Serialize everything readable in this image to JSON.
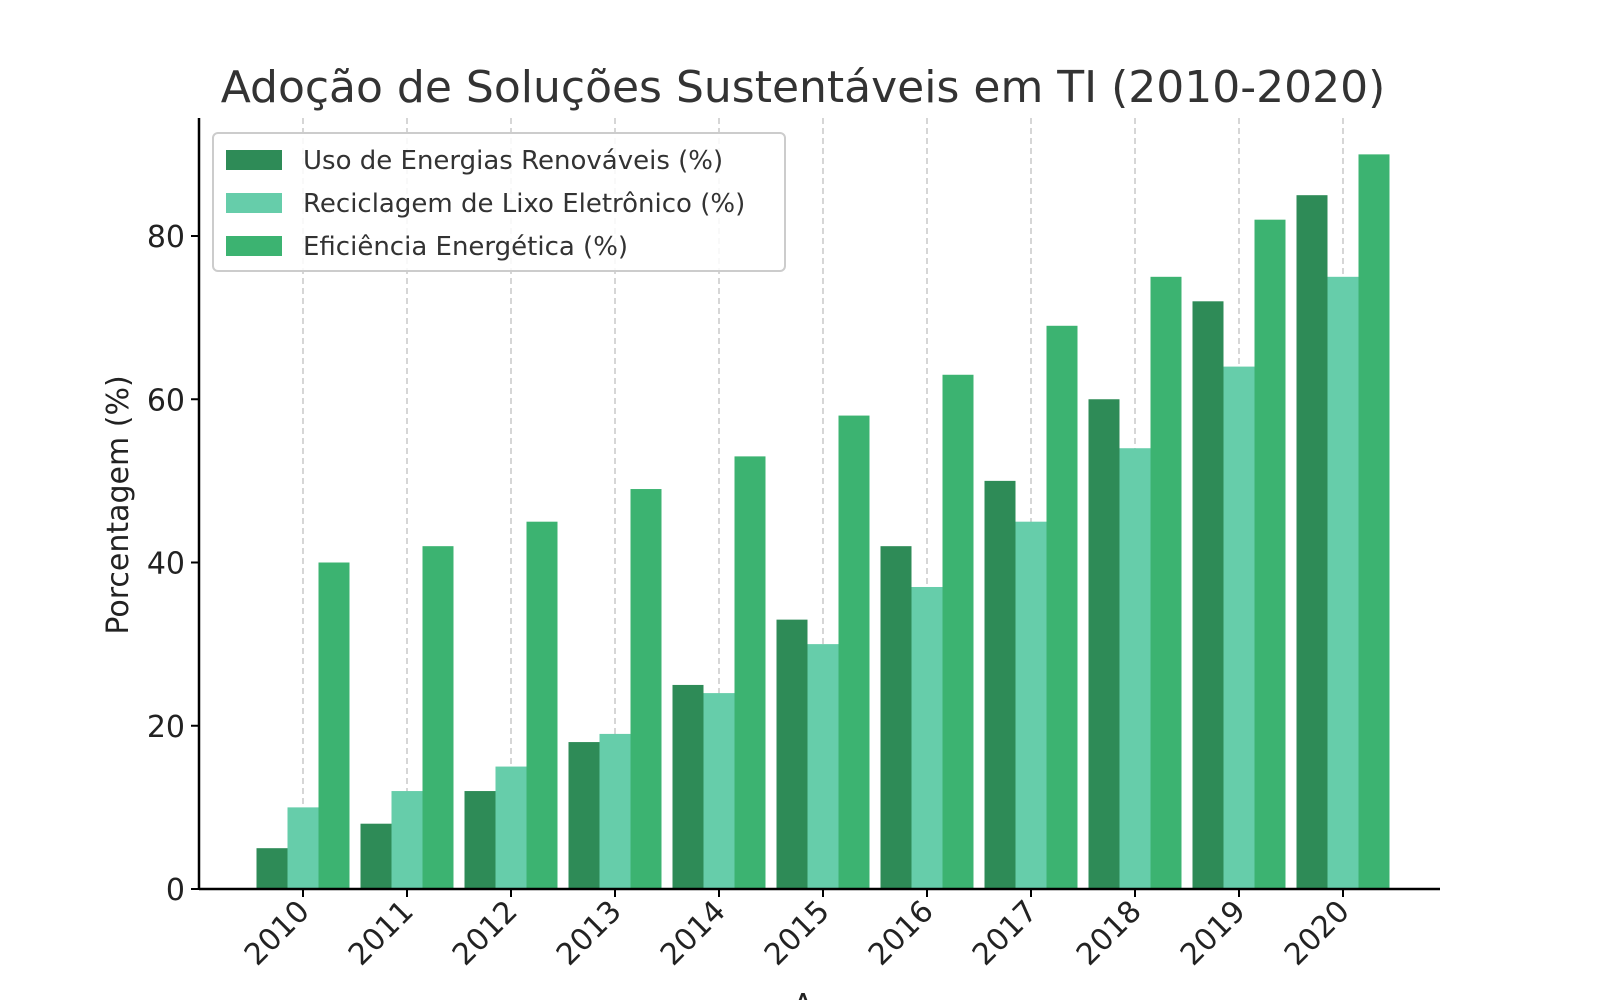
{
  "chart_data": {
    "type": "bar",
    "title": "Adoção de Soluções Sustentáveis em TI (2010-2020)",
    "xlabel": "A",
    "ylabel": "Porcentagem (%)",
    "categories": [
      "2010",
      "2011",
      "2012",
      "2013",
      "2014",
      "2015",
      "2016",
      "2017",
      "2018",
      "2019",
      "2020"
    ],
    "series": [
      {
        "name": "Uso de Energias Renováveis (%)",
        "color": "#2e8b57",
        "values": [
          5,
          8,
          12,
          18,
          25,
          33,
          42,
          50,
          60,
          72,
          85
        ]
      },
      {
        "name": "Reciclagem de Lixo Eletrônico (%)",
        "color": "#66cdaa",
        "values": [
          10,
          12,
          15,
          19,
          24,
          30,
          37,
          45,
          54,
          64,
          75
        ]
      },
      {
        "name": "Eficiência Energética (%)",
        "color": "#3cb371",
        "values": [
          40,
          42,
          45,
          49,
          53,
          58,
          63,
          69,
          75,
          82,
          90
        ]
      }
    ],
    "ylim": [
      0,
      95
    ],
    "yticks": [
      0,
      20,
      40,
      60,
      80
    ],
    "grid": "vertical dashed",
    "legend_position": "top-left"
  }
}
